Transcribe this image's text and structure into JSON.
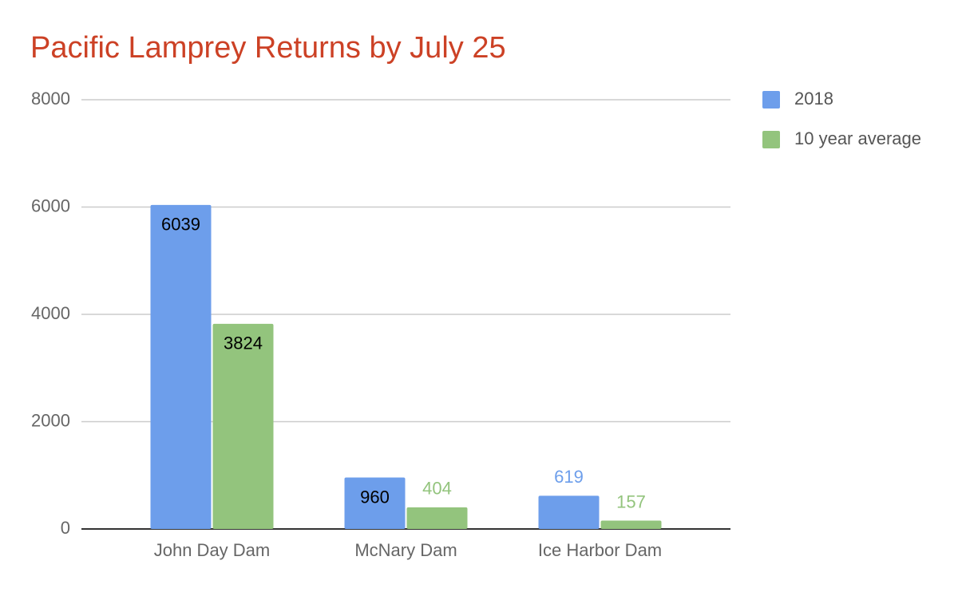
{
  "chart_data": {
    "type": "bar",
    "title": "Pacific Lamprey Returns by July 25",
    "categories": [
      "John Day Dam",
      "McNary Dam",
      "Ice Harbor Dam"
    ],
    "series": [
      {
        "name": "2018",
        "color": "#6d9eeb",
        "values": [
          6039,
          960,
          619
        ]
      },
      {
        "name": "10 year average",
        "color": "#93c47d",
        "values": [
          3824,
          404,
          157
        ]
      }
    ],
    "ylim": [
      0,
      8000
    ],
    "yticks": [
      0,
      2000,
      4000,
      6000,
      8000
    ],
    "grid": true,
    "legend": "right"
  }
}
